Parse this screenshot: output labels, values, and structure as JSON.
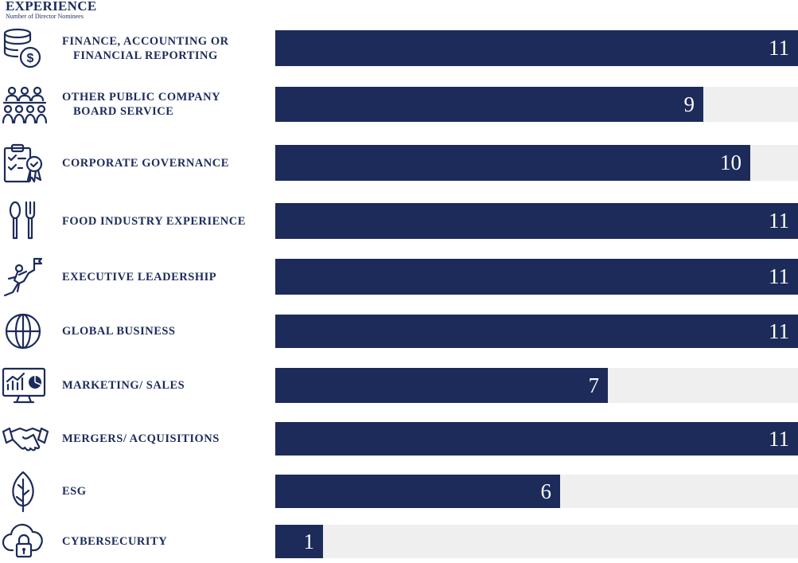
{
  "header": {
    "title": "EXPERIENCE",
    "subtitle": "Number of Director Nominees"
  },
  "colors": {
    "bar": "#1c2b5a",
    "track": "#efefef",
    "text": "#1c2b5a"
  },
  "chart_data": {
    "type": "bar",
    "orientation": "horizontal",
    "title": "EXPERIENCE",
    "subtitle": "Number of Director Nominees",
    "xlim": [
      0,
      11
    ],
    "categories": [
      [
        "FINANCE, ACCOUNTING OR",
        "FINANCIAL REPORTING"
      ],
      [
        "OTHER PUBLIC COMPANY",
        "BOARD SERVICE"
      ],
      [
        "CORPORATE GOVERNANCE"
      ],
      [
        "FOOD INDUSTRY EXPERIENCE"
      ],
      [
        "EXECUTIVE LEADERSHIP"
      ],
      [
        "GLOBAL BUSINESS"
      ],
      [
        "MARKETING/ SALES"
      ],
      [
        "MERGERS/ ACQUISITIONS"
      ],
      [
        "ESG"
      ],
      [
        "CYBERSECURITY"
      ]
    ],
    "values": [
      11,
      9,
      10,
      11,
      11,
      11,
      7,
      11,
      6,
      1
    ],
    "icons": [
      "coins-dollar-icon",
      "board-meeting-icon",
      "clipboard-award-icon",
      "spoon-fork-icon",
      "climber-flag-icon",
      "globe-icon",
      "analytics-monitor-icon",
      "handshake-icon",
      "leaf-icon",
      "cloud-lock-icon"
    ]
  }
}
